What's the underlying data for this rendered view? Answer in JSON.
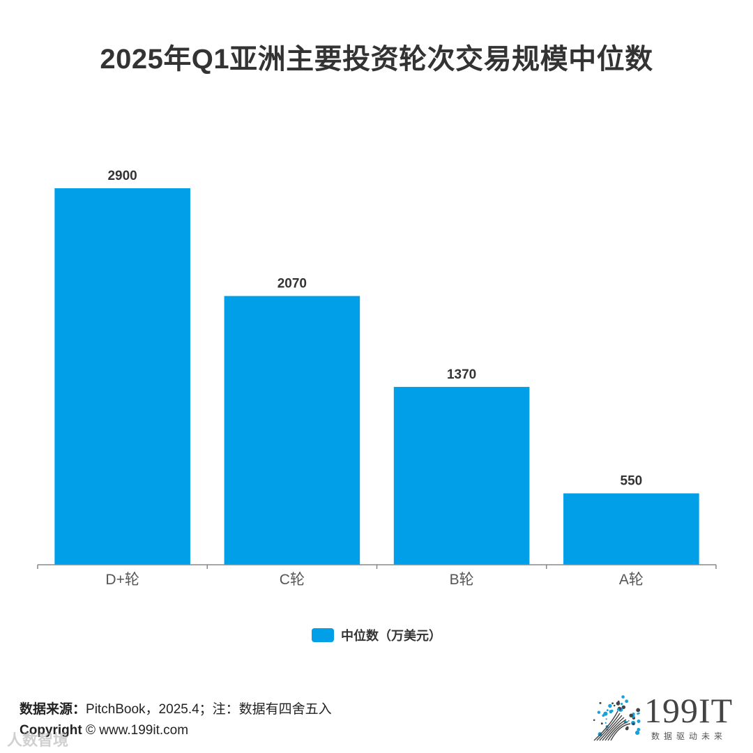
{
  "chart_data": {
    "type": "bar",
    "title": "2025年Q1亚洲主要投资轮次交易规模中位数",
    "categories": [
      "D+轮",
      "C轮",
      "B轮",
      "A轮"
    ],
    "series": [
      {
        "name": "中位数（万美元）",
        "values": [
          2900,
          2070,
          1370,
          550
        ]
      }
    ],
    "data_labels": [
      "2900",
      "2070",
      "1370",
      "550"
    ],
    "ylim": [
      0,
      3300
    ],
    "grid": false,
    "legend": "bottom",
    "bar_color": "#009fe8"
  },
  "footer": {
    "source_label": "数据来源：",
    "source_text": "PitchBook，2025.4；注：数据有四舍五入",
    "copyright_label": "Copyright",
    "copyright_text": " ©  www.199it.com",
    "watermark": "人数智境"
  },
  "logo": {
    "text": "199IT",
    "tagline": "数据驱动未来",
    "icon": "dandelion-logo-icon",
    "colors": [
      "#1a9fd9",
      "#444444"
    ]
  }
}
